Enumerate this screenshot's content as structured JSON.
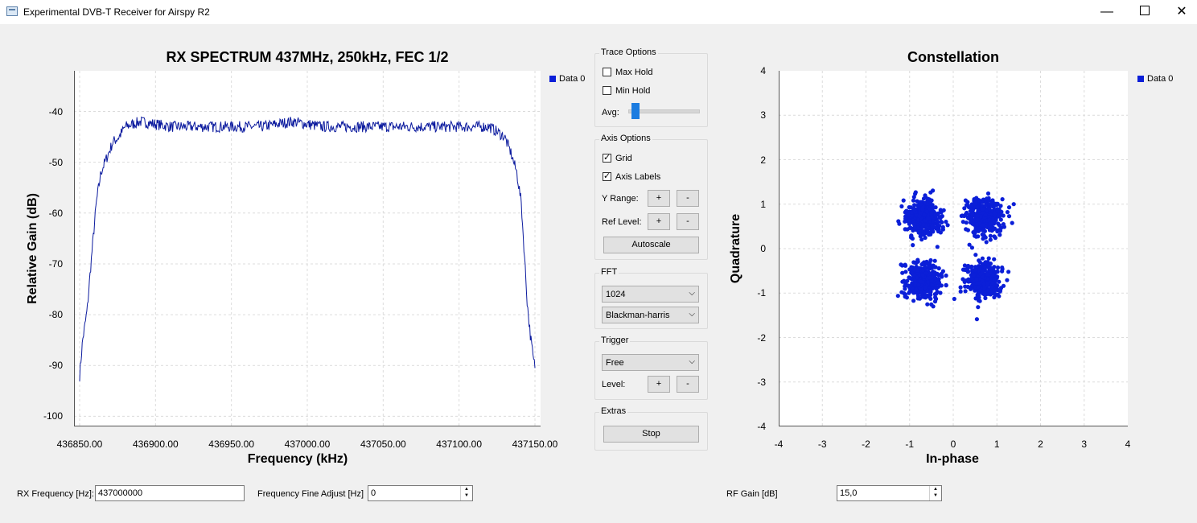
{
  "window": {
    "title": "Experimental DVB-T Receiver for Airspy R2",
    "minimize_glyph": "—",
    "close_glyph": "✕"
  },
  "spectrum": {
    "title": "RX SPECTRUM 437MHz, 250kHz, FEC 1/2",
    "legend": "Data 0",
    "xlabel": "Frequency (kHz)",
    "ylabel": "Relative Gain (dB)",
    "y_ticks": [
      "-40",
      "-50",
      "-60",
      "-70",
      "-80",
      "-90",
      "-100"
    ],
    "x_ticks": [
      "436850.00",
      "436900.00",
      "436950.00",
      "437000.00",
      "437050.00",
      "437100.00",
      "437150.00"
    ]
  },
  "constellation": {
    "title": "Constellation",
    "legend": "Data 0",
    "xlabel": "In-phase",
    "ylabel": "Quadrature",
    "y_ticks": [
      "4",
      "3",
      "2",
      "1",
      "0",
      "-1",
      "-2",
      "-3",
      "-4"
    ],
    "x_ticks": [
      "-4",
      "-3",
      "-2",
      "-1",
      "0",
      "1",
      "2",
      "3",
      "4"
    ]
  },
  "trace_options": {
    "title": "Trace Options",
    "max_hold": "Max Hold",
    "min_hold": "Min Hold",
    "avg_label": "Avg:",
    "avg_level": 0.05
  },
  "axis_options": {
    "title": "Axis Options",
    "grid": "Grid",
    "axis_labels": "Axis Labels",
    "y_range": "Y Range:",
    "ref_level": "Ref Level:",
    "plus": "+",
    "minus": "-",
    "autoscale": "Autoscale"
  },
  "fft": {
    "title": "FFT",
    "size": "1024",
    "window": "Blackman-harris"
  },
  "trigger": {
    "title": "Trigger",
    "mode": "Free",
    "level": "Level:",
    "plus": "+",
    "minus": "-"
  },
  "extras": {
    "title": "Extras",
    "stop": "Stop"
  },
  "bottom": {
    "rx_freq_label": "RX Frequency [Hz]:",
    "rx_freq_value": "437000000",
    "fine_adjust_label": "Frequency Fine Adjust [Hz]",
    "fine_adjust_value": "0",
    "rf_gain_label": "RF Gain [dB]",
    "rf_gain_value": "15,0"
  },
  "colors": {
    "spectrum_trace": "#0b1a9e",
    "constellation_points": "#0b1fd8",
    "grid": "#dcdcdc"
  },
  "chart_data": [
    {
      "type": "line",
      "title": "RX SPECTRUM 437MHz, 250kHz, FEC 1/2",
      "xlabel": "Frequency (kHz)",
      "ylabel": "Relative Gain (dB)",
      "xlim": [
        436850,
        437150
      ],
      "ylim": [
        -102,
        -32
      ],
      "legend": [
        "Data 0"
      ],
      "grid": true,
      "series": [
        {
          "name": "Data 0",
          "x": [
            436850,
            436852,
            436855,
            436858,
            436861,
            436864,
            436868,
            436872,
            436876,
            436880,
            436890,
            436910,
            436930,
            436950,
            436970,
            436990,
            437010,
            437030,
            437050,
            437070,
            437090,
            437110,
            437120,
            437125,
            437130,
            437134,
            437138,
            437141,
            437143,
            437145,
            437147,
            437149,
            437150
          ],
          "y": [
            -92,
            -85,
            -79,
            -68,
            -58,
            -52,
            -49,
            -46,
            -45,
            -43,
            -42,
            -43,
            -43,
            -43,
            -43,
            -42,
            -43,
            -43,
            -43,
            -43,
            -43,
            -43,
            -43,
            -44,
            -45,
            -48,
            -52,
            -58,
            -68,
            -78,
            -84,
            -89,
            -90
          ]
        }
      ]
    },
    {
      "type": "scatter",
      "title": "Constellation",
      "xlabel": "In-phase",
      "ylabel": "Quadrature",
      "xlim": [
        -4,
        4
      ],
      "ylim": [
        -4,
        4
      ],
      "legend": [
        "Data 0"
      ],
      "grid": true,
      "series": [
        {
          "name": "Data 0",
          "clusters": [
            {
              "x": -0.7,
              "y": 0.7,
              "spread": 0.25
            },
            {
              "x": 0.7,
              "y": 0.7,
              "spread": 0.25
            },
            {
              "x": -0.7,
              "y": -0.7,
              "spread": 0.25
            },
            {
              "x": 0.7,
              "y": -0.7,
              "spread": 0.25
            }
          ]
        }
      ]
    }
  ]
}
